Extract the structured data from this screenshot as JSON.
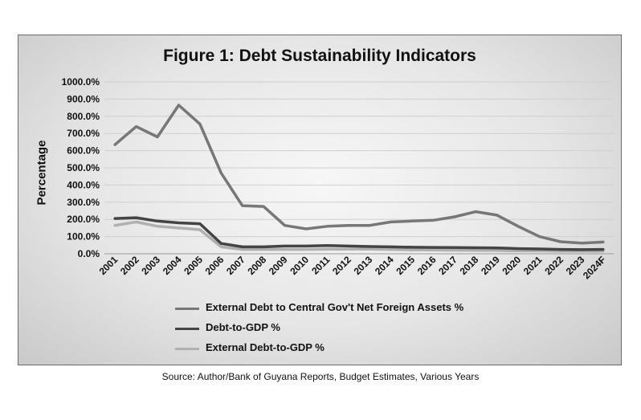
{
  "source_note": "Source: Author/Bank of Guyana Reports, Budget Estimates, Various Years",
  "colors": {
    "series_1": "#777777",
    "series_2": "#444444",
    "series_3": "#b0b0b0",
    "grid": "#cfcfcf"
  },
  "chart_data": {
    "type": "line",
    "title": "Figure 1: Debt Sustainability Indicators",
    "xlabel": "",
    "ylabel": "Percentage",
    "ylim": [
      0,
      1000
    ],
    "y_ticks": [
      "0.0%",
      "100.0%",
      "200.0%",
      "300.0%",
      "400.0%",
      "500.0%",
      "600.0%",
      "700.0%",
      "800.0%",
      "900.0%",
      "1000.0%"
    ],
    "grid": true,
    "legend_position": "bottom",
    "categories": [
      "2001",
      "2002",
      "2003",
      "2004",
      "2005",
      "2006",
      "2007",
      "2008",
      "2009",
      "2010",
      "2011",
      "2012",
      "2013",
      "2014",
      "2015",
      "2016",
      "2017",
      "2018",
      "2019",
      "2020",
      "2021",
      "2022",
      "2023",
      "2024F"
    ],
    "series": [
      {
        "name": "External Debt to Central Gov't Net Foreign Assets %",
        "values": [
          635,
          740,
          680,
          865,
          755,
          470,
          280,
          275,
          165,
          145,
          160,
          165,
          165,
          185,
          190,
          195,
          215,
          245,
          225,
          160,
          100,
          70,
          62,
          68
        ]
      },
      {
        "name": "Debt-to-GDP %",
        "values": [
          205,
          210,
          190,
          180,
          175,
          60,
          40,
          40,
          45,
          45,
          48,
          45,
          42,
          40,
          38,
          37,
          36,
          35,
          34,
          30,
          28,
          25,
          24,
          25
        ]
      },
      {
        "name": "External Debt-to-GDP %",
        "values": [
          165,
          185,
          160,
          150,
          140,
          40,
          25,
          25,
          25,
          25,
          27,
          27,
          27,
          25,
          23,
          22,
          21,
          20,
          19,
          17,
          17,
          15,
          15,
          15
        ]
      }
    ]
  }
}
